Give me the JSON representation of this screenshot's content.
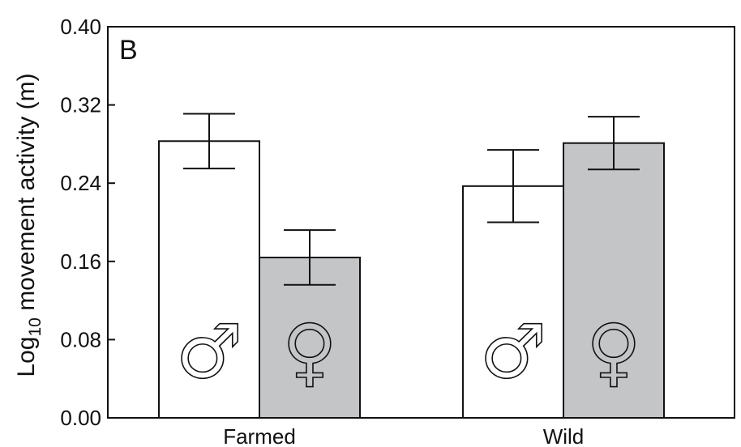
{
  "chart_data": {
    "type": "bar",
    "panel_label": "B",
    "ylabel_prefix": "Log",
    "ylabel_subscript": "10",
    "ylabel_suffix": " movement activity (m)",
    "xlabel": "",
    "ylim": [
      0,
      0.4
    ],
    "yticks": [
      "0.00",
      "0.08",
      "0.16",
      "0.24",
      "0.32",
      "0.40"
    ],
    "categories": [
      "Farmed",
      "Wild"
    ],
    "series": [
      {
        "symbol": "♂",
        "color": "#ffffff",
        "values": [
          0.283,
          0.237
        ],
        "errors": [
          0.028,
          0.037
        ]
      },
      {
        "symbol": "♀",
        "color": "#c4c5c7",
        "values": [
          0.164,
          0.281
        ],
        "errors": [
          0.028,
          0.027
        ]
      }
    ],
    "grid": false,
    "legend": "none"
  }
}
